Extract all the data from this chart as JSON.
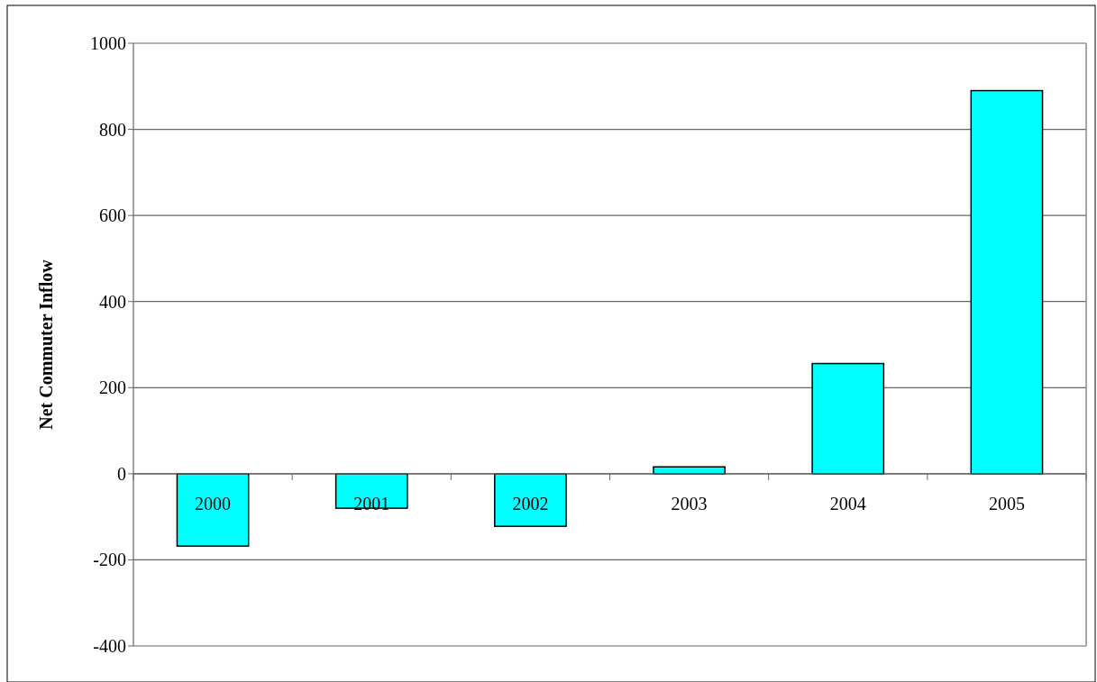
{
  "chart_data": {
    "type": "bar",
    "ylabel": "Net Commuter Inflow",
    "categories": [
      "2000",
      "2001",
      "2002",
      "2003",
      "2004",
      "2005"
    ],
    "values": [
      -168,
      -80,
      -122,
      16,
      256,
      890
    ],
    "color": "#00ffff",
    "ylim": [
      -400,
      1000
    ],
    "yticks": [
      -400,
      -200,
      0,
      200,
      400,
      600,
      800,
      1000
    ],
    "grid": "y"
  }
}
